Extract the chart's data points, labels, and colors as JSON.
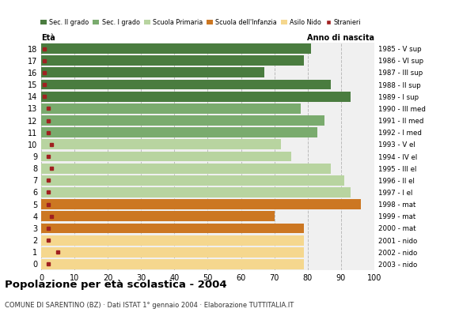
{
  "ages": [
    18,
    17,
    16,
    15,
    14,
    13,
    12,
    11,
    10,
    9,
    8,
    7,
    6,
    5,
    4,
    3,
    2,
    1,
    0
  ],
  "years": [
    "1985 - V sup",
    "1986 - VI sup",
    "1987 - III sup",
    "1988 - II sup",
    "1989 - I sup",
    "1990 - III med",
    "1991 - II med",
    "1992 - I med",
    "1993 - V el",
    "1994 - IV el",
    "1995 - III el",
    "1996 - II el",
    "1997 - I el",
    "1998 - mat",
    "1999 - mat",
    "2000 - mat",
    "2001 - nido",
    "2002 - nido",
    "2003 - nido"
  ],
  "bar_values": [
    81,
    79,
    67,
    87,
    93,
    78,
    85,
    83,
    72,
    75,
    87,
    91,
    93,
    96,
    70,
    79,
    79,
    79,
    79
  ],
  "stranieri_values": [
    1,
    1,
    1,
    1,
    1,
    2,
    2,
    2,
    3,
    2,
    3,
    2,
    2,
    2,
    3,
    2,
    2,
    5,
    2
  ],
  "bar_colors": [
    "#4a7c3f",
    "#4a7c3f",
    "#4a7c3f",
    "#4a7c3f",
    "#4a7c3f",
    "#7aab6e",
    "#7aab6e",
    "#7aab6e",
    "#b8d4a0",
    "#b8d4a0",
    "#b8d4a0",
    "#b8d4a0",
    "#b8d4a0",
    "#cc7722",
    "#cc7722",
    "#cc7722",
    "#f5d78e",
    "#f5d78e",
    "#f5d78e"
  ],
  "legend_labels": [
    "Sec. II grado",
    "Sec. I grado",
    "Scuola Primaria",
    "Scuola dell'Infanzia",
    "Asilo Nido",
    "Stranieri"
  ],
  "legend_colors": [
    "#4a7c3f",
    "#7aab6e",
    "#b8d4a0",
    "#cc7722",
    "#f5d78e",
    "#a02020"
  ],
  "title": "Popolazione per età scolastica - 2004",
  "subtitle": "COMUNE DI SARENTINO (BZ) · Dati ISTAT 1° gennaio 2004 · Elaborazione TUTTITALIA.IT",
  "xlabel_eta": "Età",
  "xlabel_anno": "Anno di nascita",
  "stranieri_color": "#a02020",
  "grid_color": "#bbbbbb",
  "bg_color": "#f0f0f0",
  "xlim": [
    0,
    100
  ],
  "xticks": [
    0,
    10,
    20,
    30,
    40,
    50,
    60,
    70,
    80,
    90,
    100
  ]
}
